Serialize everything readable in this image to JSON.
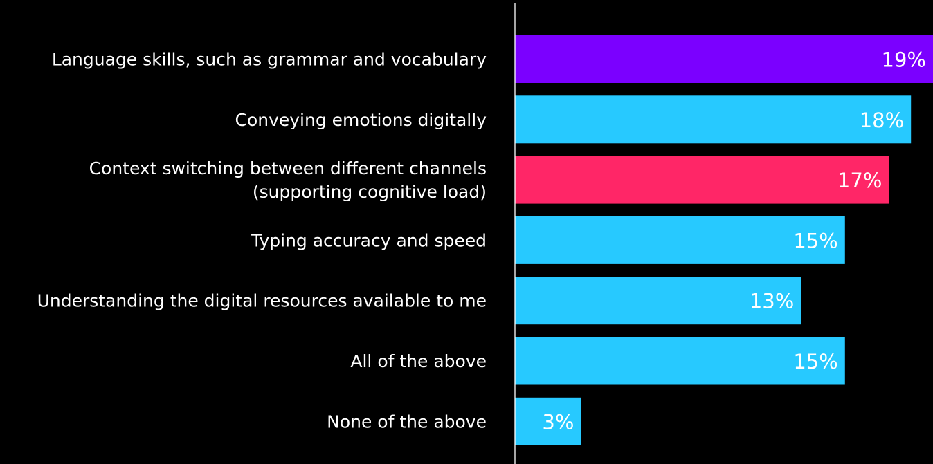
{
  "chart_data": {
    "type": "bar",
    "orientation": "horizontal",
    "categories": [
      [
        "Language skills, such as grammar and vocabulary"
      ],
      [
        "Conveying emotions digitally"
      ],
      [
        "Context switching between different channels",
        "(supporting cognitive load)"
      ],
      [
        "Typing accuracy and speed"
      ],
      [
        "Understanding the digital resources available to me"
      ],
      [
        "All of the above"
      ],
      [
        "None of the above"
      ]
    ],
    "values": [
      19,
      18,
      17,
      15,
      13,
      15,
      3
    ],
    "value_labels": [
      "19%",
      "18%",
      "17%",
      "15%",
      "13%",
      "15%",
      "3%"
    ],
    "bar_colors": [
      "#7B00FF",
      "#27C9FF",
      "#FF2667",
      "#27C9FF",
      "#27C9FF",
      "#27C9FF",
      "#27C9FF"
    ],
    "background": "#000000",
    "axis_line_color": "#FFFFFF",
    "label_color": "#FFFFFF",
    "xlim": [
      0,
      19
    ],
    "grid": false,
    "legend": "none"
  }
}
